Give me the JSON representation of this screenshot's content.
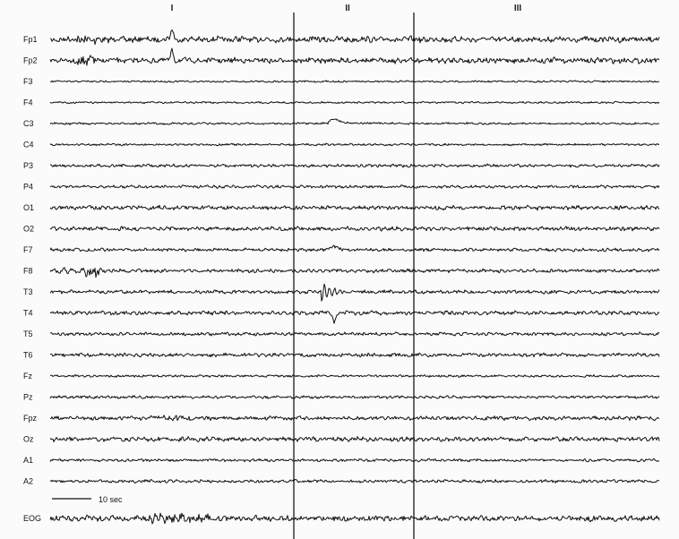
{
  "chart_data": {
    "type": "line",
    "channels": [
      {
        "name": "Fp1",
        "amplitude": 2.6
      },
      {
        "name": "Fp2",
        "amplitude": 2.4
      },
      {
        "name": "F3",
        "amplitude": 0.8
      },
      {
        "name": "F4",
        "amplitude": 0.8
      },
      {
        "name": "C3",
        "amplitude": 0.9
      },
      {
        "name": "C4",
        "amplitude": 0.9
      },
      {
        "name": "P3",
        "amplitude": 1.3
      },
      {
        "name": "P4",
        "amplitude": 1.3
      },
      {
        "name": "O1",
        "amplitude": 1.8
      },
      {
        "name": "O2",
        "amplitude": 1.8
      },
      {
        "name": "F7",
        "amplitude": 1.4
      },
      {
        "name": "F8",
        "amplitude": 1.5
      },
      {
        "name": "T3",
        "amplitude": 1.5
      },
      {
        "name": "T4",
        "amplitude": 1.7
      },
      {
        "name": "T5",
        "amplitude": 1.4
      },
      {
        "name": "T6",
        "amplitude": 1.6
      },
      {
        "name": "Fz",
        "amplitude": 1.0
      },
      {
        "name": "Pz",
        "amplitude": 1.2
      },
      {
        "name": "Fpz",
        "amplitude": 1.7
      },
      {
        "name": "Oz",
        "amplitude": 1.9
      },
      {
        "name": "A1",
        "amplitude": 1.2
      },
      {
        "name": "A2",
        "amplitude": 1.3
      },
      {
        "name": "EOG",
        "amplitude": 2.4
      }
    ],
    "segment_markers": [
      "I",
      "II",
      "III"
    ],
    "scale_bar": {
      "label": "10 sec",
      "duration_sec": 10
    }
  }
}
